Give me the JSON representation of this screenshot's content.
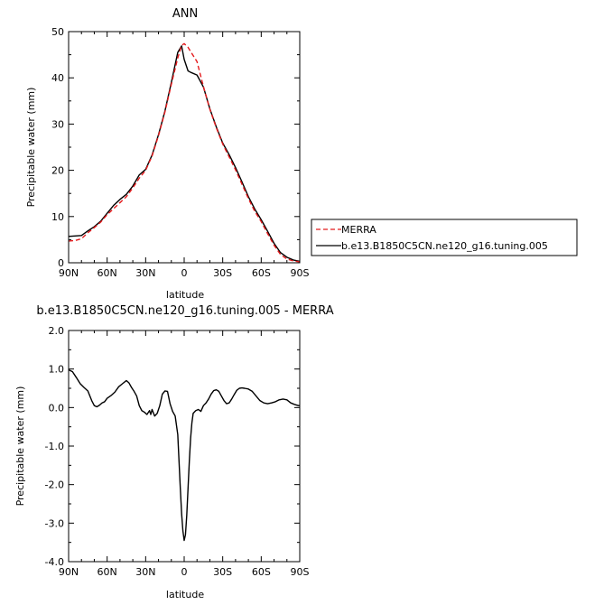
{
  "chart_data": [
    {
      "type": "line",
      "title": "ANN",
      "xlabel": "latitude",
      "ylabel": "Precipitable water (mm)",
      "x_ticks": [
        "90N",
        "60N",
        "30N",
        "0",
        "30S",
        "60S",
        "90S"
      ],
      "x_tick_values": [
        90,
        60,
        30,
        0,
        -30,
        -60,
        -90
      ],
      "y_ticks": [
        "0",
        "10",
        "20",
        "30",
        "40",
        "50"
      ],
      "y_tick_values": [
        0,
        10,
        20,
        30,
        40,
        50
      ],
      "xlim": [
        90,
        -90
      ],
      "ylim": [
        0,
        50
      ],
      "legend_position": "right",
      "x": [
        90,
        85,
        80,
        75,
        70,
        65,
        60,
        55,
        50,
        45,
        40,
        35,
        30,
        25,
        20,
        15,
        10,
        5,
        2,
        0,
        -3,
        -5,
        -10,
        -15,
        -20,
        -25,
        -30,
        -35,
        -40,
        -45,
        -50,
        -55,
        -60,
        -65,
        -70,
        -75,
        -80,
        -85,
        -90
      ],
      "series": [
        {
          "name": "MERRA",
          "color": "#e41a1c",
          "dash": "dashed",
          "values": [
            4.7,
            4.8,
            5.2,
            6.5,
            7.6,
            8.8,
            10.4,
            11.7,
            13.0,
            14.3,
            16.2,
            18.3,
            20.0,
            23.1,
            27.5,
            32.6,
            38.6,
            44.3,
            47.0,
            47.4,
            46.6,
            45.7,
            43.5,
            38.1,
            33.2,
            29.2,
            25.7,
            22.9,
            20.1,
            17.0,
            13.9,
            11.1,
            8.9,
            6.3,
            3.8,
            1.8,
            0.8,
            0.4,
            0.2
          ]
        },
        {
          "name": "b.e13.B1850C5CN.ne120_g16.tuning.005",
          "color": "#000000",
          "dash": "solid",
          "values": [
            5.7,
            5.8,
            5.9,
            6.9,
            7.8,
            9.0,
            10.7,
            12.4,
            13.7,
            14.8,
            16.6,
            19.0,
            20.2,
            23.3,
            27.7,
            32.8,
            39.0,
            45.5,
            46.9,
            44.0,
            41.5,
            41.2,
            40.6,
            38.0,
            33.3,
            29.4,
            25.9,
            23.4,
            20.6,
            17.5,
            14.3,
            11.6,
            9.3,
            6.8,
            4.2,
            2.2,
            1.2,
            0.6,
            0.3
          ]
        }
      ]
    },
    {
      "type": "line",
      "title": "b.e13.B1850C5CN.ne120_g16.tuning.005 - MERRA",
      "xlabel": "latitude",
      "ylabel": "Precipitable water (mm)",
      "x_ticks": [
        "90N",
        "60N",
        "30N",
        "0",
        "30S",
        "60S",
        "90S"
      ],
      "x_tick_values": [
        90,
        60,
        30,
        0,
        -30,
        -60,
        -90
      ],
      "y_ticks": [
        "2.0",
        "1.0",
        "0.0",
        "-1.0",
        "-2.0",
        "-3.0",
        "-4.0"
      ],
      "y_tick_values": [
        2,
        1,
        0,
        -1,
        -2,
        -3,
        -4
      ],
      "xlim": [
        90,
        -90
      ],
      "ylim": [
        -4,
        2
      ],
      "x": [
        90,
        87,
        84,
        81,
        78,
        75,
        72,
        70,
        68,
        66,
        64,
        62,
        60,
        57,
        54,
        51,
        48,
        45,
        43,
        41,
        39,
        37,
        35,
        33,
        31,
        29,
        27,
        26,
        25,
        23,
        21,
        19,
        17,
        15,
        13,
        11,
        9,
        7,
        5,
        4,
        3,
        2,
        1,
        0,
        -1,
        -2,
        -3,
        -4,
        -5,
        -6,
        -7,
        -9,
        -11,
        -13,
        -15,
        -17,
        -19,
        -21,
        -23,
        -25,
        -27,
        -29,
        -31,
        -33,
        -35,
        -37,
        -39,
        -41,
        -43,
        -45,
        -47,
        -50,
        -53,
        -56,
        -59,
        -62,
        -65,
        -68,
        -71,
        -74,
        -77,
        -80,
        -83,
        -86,
        -89,
        -90
      ],
      "series": [
        {
          "name": "",
          "color": "#000000",
          "dash": "solid",
          "values": [
            0.98,
            0.93,
            0.78,
            0.62,
            0.52,
            0.43,
            0.18,
            0.05,
            0.02,
            0.06,
            0.12,
            0.15,
            0.24,
            0.31,
            0.4,
            0.54,
            0.62,
            0.7,
            0.64,
            0.52,
            0.42,
            0.3,
            0.05,
            -0.08,
            -0.12,
            -0.18,
            -0.08,
            -0.18,
            -0.05,
            -0.22,
            -0.15,
            0.05,
            0.35,
            0.43,
            0.42,
            0.1,
            -0.1,
            -0.22,
            -0.7,
            -1.4,
            -2.1,
            -2.75,
            -3.2,
            -3.45,
            -3.3,
            -2.8,
            -2.1,
            -1.4,
            -0.8,
            -0.4,
            -0.15,
            -0.08,
            -0.05,
            -0.1,
            0.05,
            0.12,
            0.22,
            0.35,
            0.44,
            0.46,
            0.42,
            0.3,
            0.18,
            0.1,
            0.12,
            0.22,
            0.34,
            0.45,
            0.5,
            0.51,
            0.5,
            0.48,
            0.42,
            0.3,
            0.18,
            0.12,
            0.1,
            0.12,
            0.15,
            0.2,
            0.22,
            0.2,
            0.12,
            0.08,
            0.05,
            0.05
          ]
        }
      ]
    }
  ]
}
